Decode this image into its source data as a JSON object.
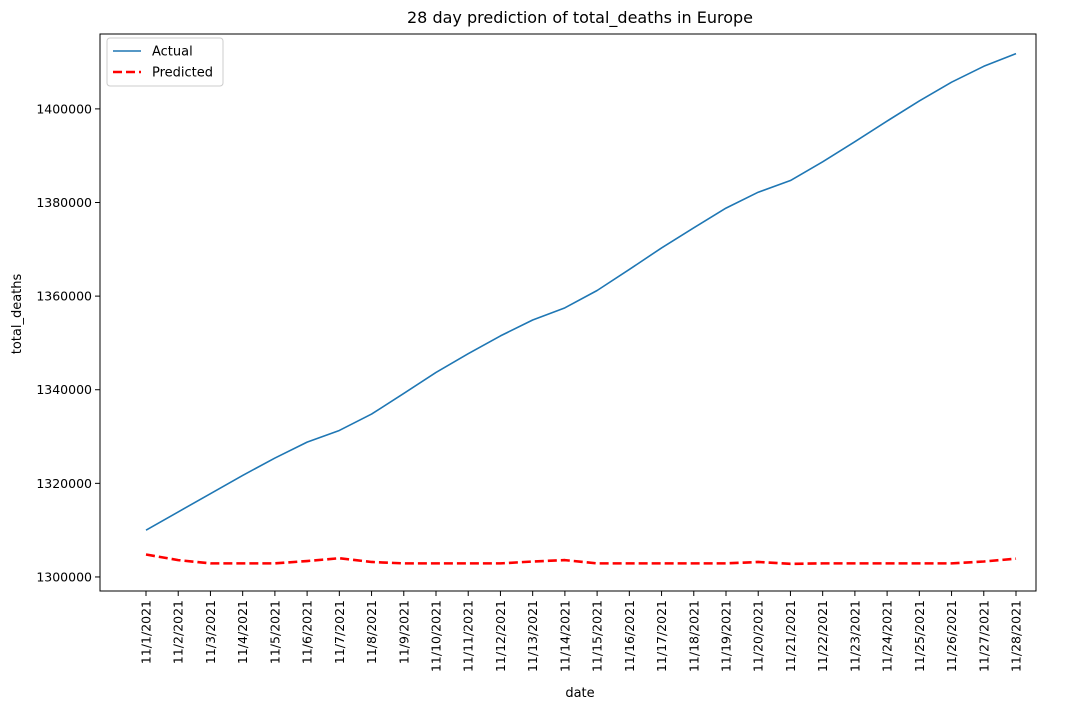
{
  "chart_data": {
    "type": "line",
    "title": "28 day prediction of total_deaths in Europe",
    "xlabel": "date",
    "ylabel": "total_deaths",
    "ylim": [
      1297000,
      1416000
    ],
    "yticks": [
      1300000,
      1320000,
      1340000,
      1360000,
      1380000,
      1400000
    ],
    "yticklabels": [
      "1300000",
      "1320000",
      "1340000",
      "1360000",
      "1380000",
      "1400000"
    ],
    "categories": [
      "11/1/2021",
      "11/2/2021",
      "11/3/2021",
      "11/4/2021",
      "11/5/2021",
      "11/6/2021",
      "11/7/2021",
      "11/8/2021",
      "11/9/2021",
      "11/10/2021",
      "11/11/2021",
      "11/12/2021",
      "11/13/2021",
      "11/14/2021",
      "11/15/2021",
      "11/16/2021",
      "11/17/2021",
      "11/18/2021",
      "11/19/2021",
      "11/20/2021",
      "11/21/2021",
      "11/22/2021",
      "11/23/2021",
      "11/24/2021",
      "11/25/2021",
      "11/26/2021",
      "11/27/2021",
      "11/28/2021"
    ],
    "legend": {
      "position": "top-left"
    },
    "grid": false,
    "series": [
      {
        "name": "Actual",
        "color": "#1f77b4",
        "style": "solid",
        "values": [
          1310000,
          1313900,
          1317800,
          1321700,
          1325400,
          1328800,
          1331300,
          1334800,
          1339200,
          1343700,
          1347700,
          1351500,
          1354900,
          1357500,
          1361200,
          1365700,
          1370300,
          1374600,
          1378800,
          1382200,
          1384700,
          1388700,
          1393000,
          1397400,
          1401700,
          1405700,
          1409100,
          1411800
        ]
      },
      {
        "name": "Predicted",
        "color": "#ff0000",
        "style": "dashed",
        "values": [
          1304800,
          1303600,
          1302900,
          1302900,
          1302900,
          1303400,
          1304000,
          1303200,
          1302900,
          1302900,
          1302900,
          1302900,
          1303300,
          1303600,
          1302900,
          1302900,
          1302900,
          1302900,
          1302900,
          1303200,
          1302800,
          1302900,
          1302900,
          1302900,
          1302900,
          1302900,
          1303300,
          1303900
        ]
      }
    ]
  }
}
